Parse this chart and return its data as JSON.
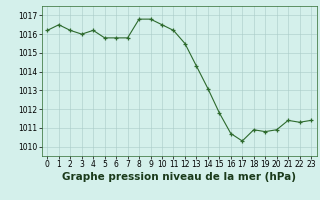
{
  "x": [
    0,
    1,
    2,
    3,
    4,
    5,
    6,
    7,
    8,
    9,
    10,
    11,
    12,
    13,
    14,
    15,
    16,
    17,
    18,
    19,
    20,
    21,
    22,
    23
  ],
  "y": [
    1016.2,
    1016.5,
    1016.2,
    1016.0,
    1016.2,
    1015.8,
    1015.8,
    1015.8,
    1016.8,
    1016.8,
    1016.5,
    1016.2,
    1015.5,
    1014.3,
    1013.1,
    1011.8,
    1010.7,
    1010.3,
    1010.9,
    1010.8,
    1010.9,
    1011.4,
    1011.3,
    1011.4
  ],
  "line_color": "#2d6a2d",
  "marker_color": "#2d6a2d",
  "bg_color": "#d4f0eb",
  "grid_color": "#aaccc8",
  "ylabel_ticks": [
    1010,
    1011,
    1012,
    1013,
    1014,
    1015,
    1016,
    1017
  ],
  "xlabel_label": "Graphe pression niveau de la mer (hPa)",
  "ylim": [
    1009.5,
    1017.5
  ],
  "xlim": [
    -0.5,
    23.5
  ],
  "tick_fontsize": 5.5,
  "label_fontsize": 7.5
}
